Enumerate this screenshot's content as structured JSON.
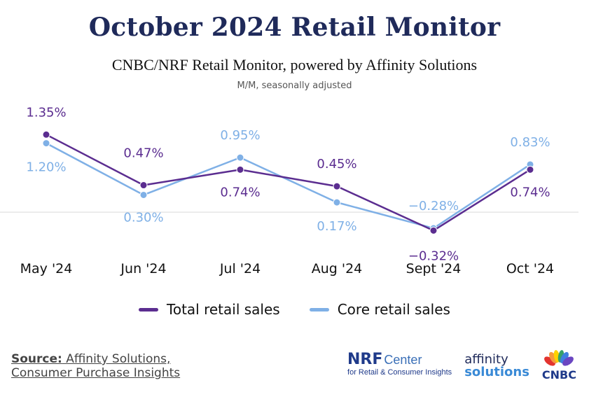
{
  "header": {
    "title": "October 2024 Retail Monitor",
    "subtitle": "CNBC/NRF Retail Monitor, powered by Affinity Solutions",
    "note": "M/M, seasonally adjusted"
  },
  "chart_data": {
    "type": "line",
    "title": "October 2024 Retail Monitor",
    "categories": [
      "May '24",
      "Jun '24",
      "Jul '24",
      "Aug '24",
      "Sept '24",
      "Oct '24"
    ],
    "series": [
      {
        "name": "Total retail sales",
        "values": [
          1.35,
          0.47,
          0.74,
          0.45,
          -0.32,
          0.74
        ],
        "labels": [
          "1.35%",
          "0.47%",
          "0.74%",
          "0.45%",
          "−0.32%",
          "0.74%"
        ],
        "color": "#5b2d90"
      },
      {
        "name": "Core retail sales",
        "values": [
          1.2,
          0.3,
          0.95,
          0.17,
          -0.28,
          0.83
        ],
        "labels": [
          "1.20%",
          "0.30%",
          "0.95%",
          "0.17%",
          "−0.28%",
          "0.83%"
        ],
        "color": "#7fb0e6"
      }
    ],
    "ylim": [
      -0.45,
      1.5
    ],
    "zero_line": true,
    "legend": "bottom"
  },
  "footer": {
    "source_label": "Source:",
    "source_line1": " Affinity Solutions,",
    "source_line2": "Consumer Purchase Insights"
  },
  "logos": {
    "nrf_mark": "NRF",
    "nrf_center": "Center",
    "nrf_sub": "for Retail & Consumer Insights",
    "affinity_top": "affinity",
    "affinity_bottom": "solutions",
    "cnbc": "CNBC"
  }
}
